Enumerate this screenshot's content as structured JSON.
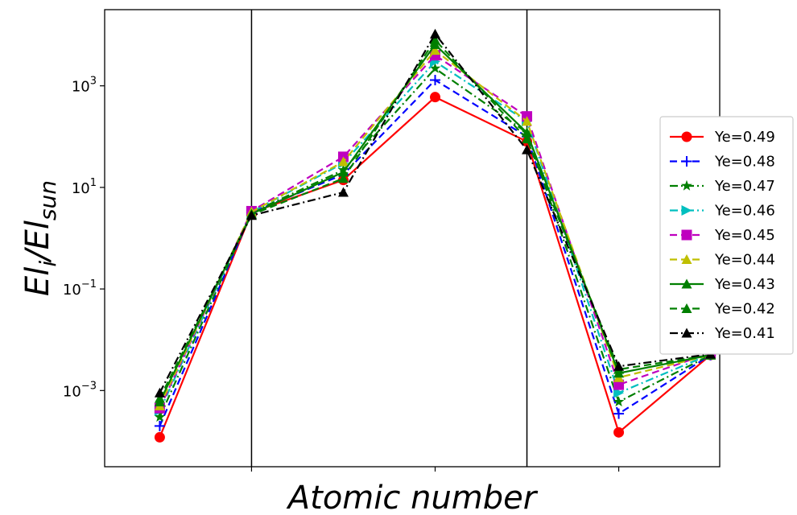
{
  "chart_data": {
    "type": "line",
    "xlabel": "Atomic number",
    "ylabel_main": "El",
    "ylabel_sub_i": "i",
    "ylabel_slash": "/El",
    "ylabel_sub_sun": "sun",
    "yscale": "log",
    "ylim": [
      3.16e-05,
      31623
    ],
    "y_ticks": [
      {
        "base": "10",
        "exp": "3",
        "value": 1000
      },
      {
        "base": "10",
        "exp": "1",
        "value": 10
      },
      {
        "base": "10",
        "exp": "−1",
        "value": 0.1
      },
      {
        "base": "10",
        "exp": "−3",
        "value": 0.001
      }
    ],
    "x_ticks": [
      2,
      4,
      6
    ],
    "xlim": [
      0.4,
      7.1
    ],
    "vertical_lines": [
      2,
      5
    ],
    "legend_position": "right",
    "x": [
      1,
      2,
      3,
      4,
      5,
      6,
      7
    ],
    "series": [
      {
        "name": "Ye=0.49",
        "color": "#ff0000",
        "dash": "",
        "marker": "circle",
        "values": [
          0.00012,
          3.2,
          14,
          600,
          80,
          0.00015,
          0.005
        ]
      },
      {
        "name": "Ye=0.48",
        "color": "#0000ff",
        "dash": "9,5",
        "marker": "plus",
        "values": [
          0.0002,
          3.2,
          18,
          1300,
          100,
          0.00035,
          0.005
        ]
      },
      {
        "name": "Ye=0.47",
        "color": "#007f00",
        "dash": "10,4,2,4",
        "marker": "star",
        "values": [
          0.0003,
          3.2,
          22,
          2200,
          120,
          0.0006,
          0.005
        ]
      },
      {
        "name": "Ye=0.46",
        "color": "#00bfbf",
        "dash": "10,4,2,4",
        "marker": "tri-right",
        "values": [
          0.0004,
          3.3,
          30,
          3000,
          200,
          0.0009,
          0.0052
        ]
      },
      {
        "name": "Ye=0.45",
        "color": "#bf00bf",
        "dash": "9,5",
        "marker": "square",
        "values": [
          0.00045,
          3.4,
          40,
          4000,
          250,
          0.0013,
          0.0055
        ]
      },
      {
        "name": "Ye=0.44",
        "color": "#bfbf00",
        "dash": "9,5",
        "marker": "tri-up",
        "values": [
          0.0005,
          3.3,
          32,
          5000,
          200,
          0.0018,
          0.005
        ]
      },
      {
        "name": "Ye=0.43",
        "color": "#007f00",
        "dash": "",
        "marker": "tri-up",
        "values": [
          0.0006,
          3.0,
          20,
          6500,
          120,
          0.0022,
          0.005
        ]
      },
      {
        "name": "Ye=0.42",
        "color": "#007f00",
        "dash": "9,5",
        "marker": "tri-up",
        "values": [
          0.0007,
          2.9,
          15,
          8000,
          90,
          0.0026,
          0.005
        ]
      },
      {
        "name": "Ye=0.41",
        "color": "#000000",
        "dash": "10,4,2,4",
        "marker": "tri-up",
        "values": [
          0.0009,
          2.8,
          8,
          10500,
          55,
          0.003,
          0.0052
        ]
      }
    ]
  }
}
